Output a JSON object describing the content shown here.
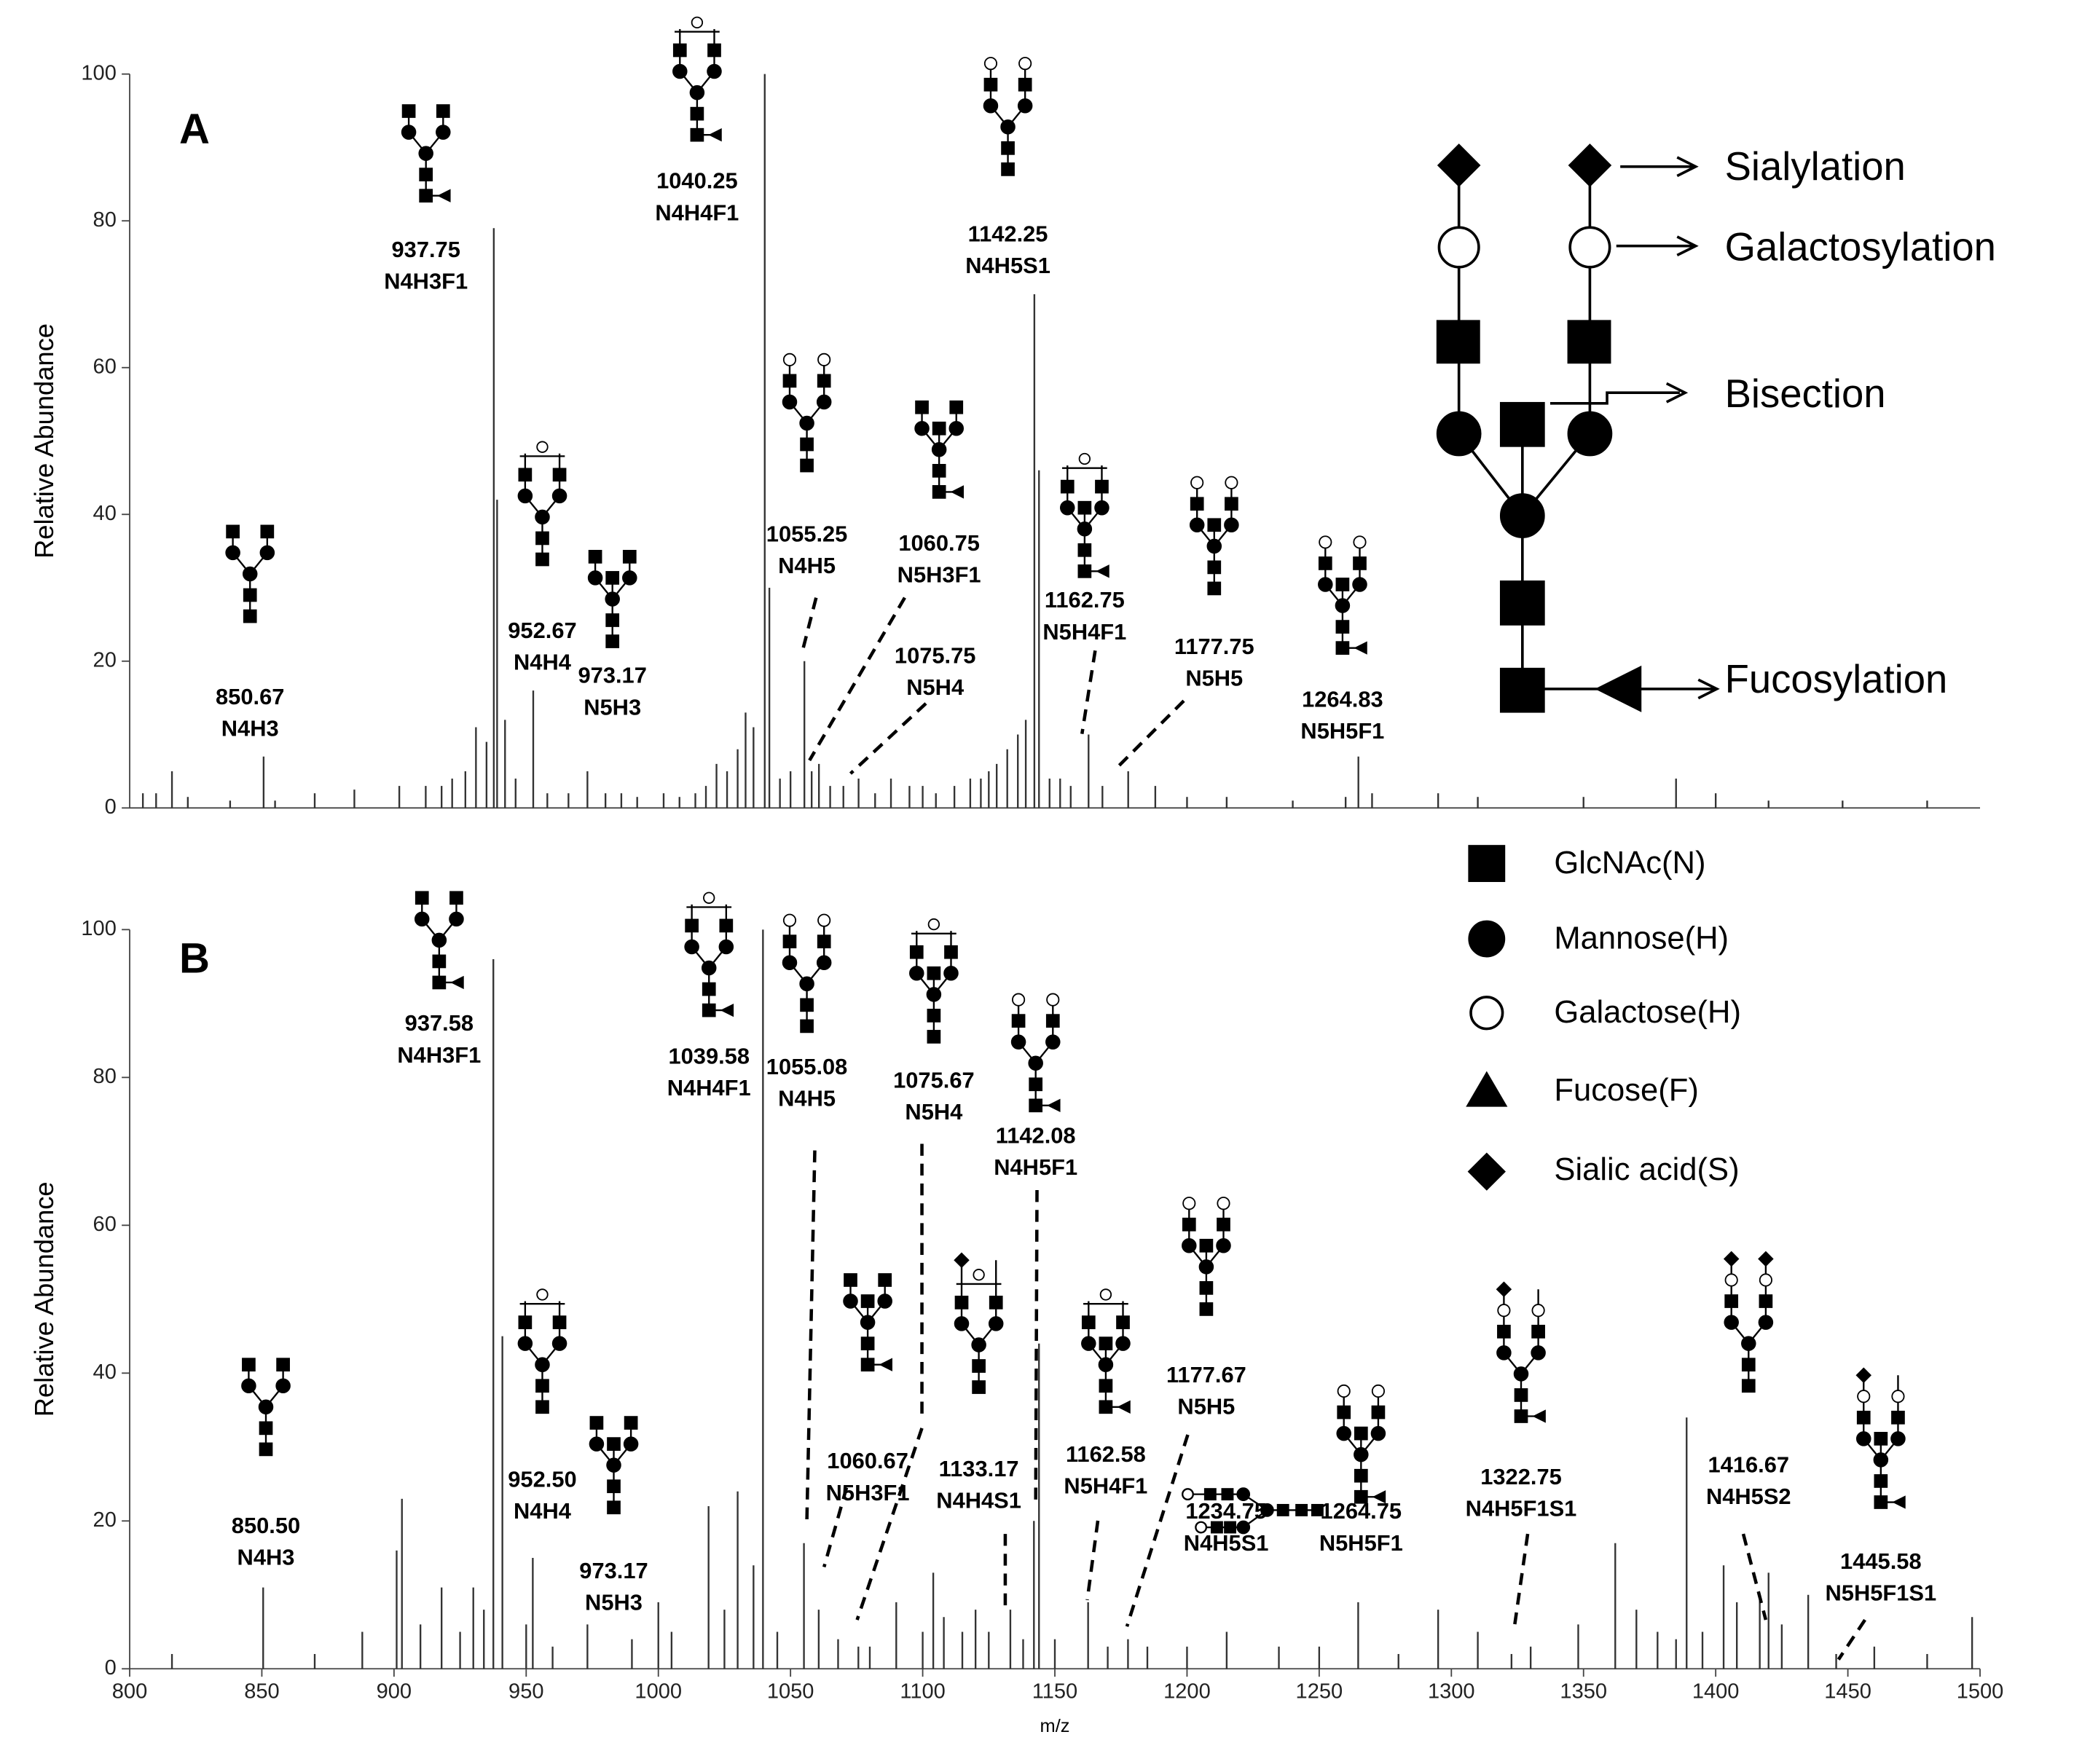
{
  "chart_data": [
    {
      "type": "spectrum",
      "panel": "A",
      "ylabel": "Relative Abundance",
      "xlim": [
        800,
        1500
      ],
      "ylim": [
        0,
        100
      ],
      "yticks": [
        0,
        20,
        40,
        60,
        80,
        100
      ],
      "color": "#333333",
      "series": [
        {
          "x": [
            805,
            810,
            816,
            822,
            838,
            850.67,
            855,
            870,
            885,
            902,
            912,
            918,
            922,
            927,
            931,
            935,
            937.75,
            939,
            942,
            946,
            952.67,
            958,
            966,
            973.17,
            980,
            986,
            992,
            1002,
            1008,
            1014,
            1018,
            1022,
            1026,
            1030,
            1033,
            1036,
            1040.25,
            1042,
            1046,
            1050,
            1055.25,
            1058,
            1060.75,
            1065,
            1070,
            1075.75,
            1082,
            1088,
            1095,
            1100,
            1105,
            1112,
            1118,
            1122,
            1125,
            1128,
            1132,
            1136,
            1139,
            1142.25,
            1144,
            1148,
            1152,
            1156,
            1162.75,
            1168,
            1177.75,
            1188,
            1200,
            1215,
            1240,
            1260,
            1264.83,
            1270,
            1295,
            1310,
            1350,
            1385,
            1400,
            1420,
            1448,
            1480
          ],
          "values": [
            2,
            2,
            5,
            1.5,
            1,
            7,
            1,
            2,
            2.5,
            3,
            3,
            3,
            4,
            5,
            11,
            9,
            79,
            42,
            12,
            4,
            16,
            2,
            2,
            5,
            2,
            2,
            1.5,
            2,
            1.5,
            2,
            3,
            6,
            5,
            8,
            13,
            11,
            100,
            30,
            4,
            5,
            20,
            5,
            6,
            3,
            3,
            4,
            2,
            4,
            3,
            3,
            2,
            3,
            4,
            4,
            5,
            6,
            8,
            10,
            12,
            70,
            46,
            4,
            4,
            3,
            10,
            3,
            5,
            3,
            1.5,
            1.5,
            1,
            1.5,
            7,
            2,
            2,
            1.5,
            1.5,
            4,
            2,
            1,
            1,
            1
          ]
        }
      ],
      "annotations": [
        {
          "mz": "850.67",
          "composition": "N4H3"
        },
        {
          "mz": "937.75",
          "composition": "N4H3F1"
        },
        {
          "mz": "952.67",
          "composition": "N4H4"
        },
        {
          "mz": "973.17",
          "composition": "N5H3"
        },
        {
          "mz": "1040.25",
          "composition": "N4H4F1"
        },
        {
          "mz": "1055.25",
          "composition": "N4H5"
        },
        {
          "mz": "1060.75",
          "composition": "N5H3F1"
        },
        {
          "mz": "1075.75",
          "composition": "N5H4"
        },
        {
          "mz": "1142.25",
          "composition": "N4H5S1"
        },
        {
          "mz": "1162.75",
          "composition": "N5H4F1"
        },
        {
          "mz": "1177.75",
          "composition": "N5H5"
        },
        {
          "mz": "1264.83",
          "composition": "N5H5F1"
        }
      ]
    },
    {
      "type": "spectrum",
      "panel": "B",
      "ylabel": "Relative Abundance",
      "xlabel": "m/z",
      "xlim": [
        800,
        1500
      ],
      "ylim": [
        0,
        100
      ],
      "yticks": [
        0,
        20,
        40,
        60,
        80,
        100
      ],
      "xticks": [
        800,
        850,
        900,
        950,
        1000,
        1050,
        1100,
        1150,
        1200,
        1250,
        1300,
        1350,
        1400,
        1450,
        1500
      ],
      "color": "#333333",
      "series": [
        {
          "x": [
            816,
            850.5,
            870,
            888,
            901,
            903,
            910,
            918,
            925,
            930,
            934,
            937.58,
            941,
            950,
            952.5,
            960,
            973.17,
            990,
            1000,
            1005,
            1019,
            1025,
            1030,
            1036,
            1039.58,
            1045,
            1055.08,
            1060.67,
            1068,
            1075.67,
            1080,
            1090,
            1100,
            1104,
            1108,
            1115,
            1120,
            1125,
            1133.17,
            1138,
            1142.08,
            1144,
            1150,
            1162.58,
            1170,
            1177.67,
            1185,
            1200,
            1215,
            1234.75,
            1250,
            1264.75,
            1280,
            1295,
            1310,
            1322.75,
            1330,
            1348,
            1362,
            1370,
            1378,
            1385,
            1389,
            1395,
            1403,
            1408,
            1416.67,
            1420,
            1425,
            1435,
            1445.58,
            1460,
            1480,
            1497
          ],
          "values": [
            2,
            11,
            2,
            5,
            16,
            23,
            6,
            11,
            5,
            11,
            8,
            96,
            45,
            6,
            15,
            3,
            6,
            4,
            9,
            5,
            22,
            8,
            24,
            14,
            100,
            5,
            17,
            8,
            4,
            3,
            3,
            9,
            5,
            13,
            7,
            5,
            8,
            5,
            8,
            4,
            20,
            44,
            4,
            9,
            3,
            4,
            3,
            3,
            5,
            3,
            3,
            9,
            2,
            8,
            5,
            2,
            3,
            6,
            17,
            8,
            5,
            4,
            34,
            5,
            14,
            9,
            10,
            13,
            6,
            10,
            2,
            3,
            2,
            7
          ]
        }
      ],
      "annotations": [
        {
          "mz": "850.50",
          "composition": "N4H3"
        },
        {
          "mz": "937.58",
          "composition": "N4H3F1"
        },
        {
          "mz": "952.50",
          "composition": "N4H4"
        },
        {
          "mz": "973.17",
          "composition": "N5H3"
        },
        {
          "mz": "1039.58",
          "composition": "N4H4F1"
        },
        {
          "mz": "1055.08",
          "composition": "N4H5"
        },
        {
          "mz": "1075.67",
          "composition": "N5H4"
        },
        {
          "mz": "1060.67",
          "composition": "N5H3F1"
        },
        {
          "mz": "1133.17",
          "composition": "N4H4S1"
        },
        {
          "mz": "1142.08",
          "composition": "N4H5F1"
        },
        {
          "mz": "1162.58",
          "composition": "N5H4F1"
        },
        {
          "mz": "1177.67",
          "composition": "N5H5"
        },
        {
          "mz": "1234.75",
          "composition": "N4H5S1"
        },
        {
          "mz": "1264.75",
          "composition": "N5H5F1"
        },
        {
          "mz": "1322.75",
          "composition": "N4H5F1S1"
        },
        {
          "mz": "1416.67",
          "composition": "N4H5S2"
        },
        {
          "mz": "1445.58",
          "composition": "N5H5F1S1"
        }
      ]
    }
  ],
  "key": {
    "features": [
      "Sialylation",
      "Galactosylation",
      "Bisection",
      "Fucosylation"
    ],
    "residues": [
      "GlcNAc(N)",
      "Mannose(H)",
      "Galactose(H)",
      "Fucose(F)",
      "Sialic acid(S)"
    ]
  }
}
